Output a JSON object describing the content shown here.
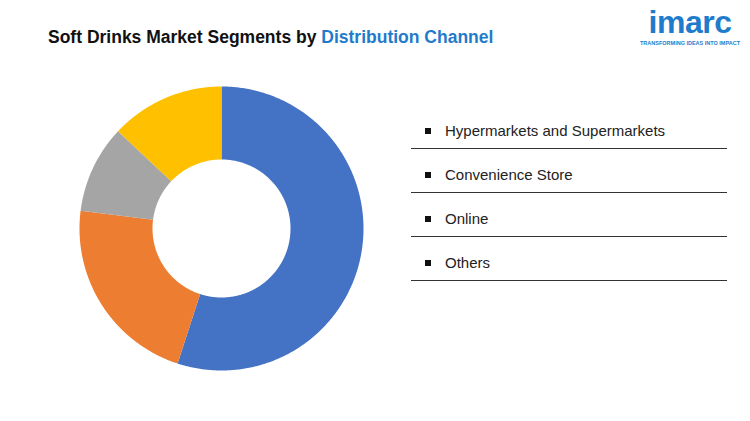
{
  "chart_data": {
    "type": "donut",
    "title": "Soft Drinks Market Segments by Distribution Channel",
    "title_highlight": "Distribution Channel",
    "logo": {
      "text": "imarc",
      "tagline": "TRANSFORMING IDEAS INTO IMPACT"
    },
    "categories": [
      "Hypermarkets and Supermarkets",
      "Convenience Store",
      "Online",
      "Others"
    ],
    "values": [
      55,
      22,
      10,
      13
    ],
    "colors": [
      "#4472c4",
      "#ed7d31",
      "#a5a5a5",
      "#ffc000"
    ],
    "legend": "right"
  }
}
